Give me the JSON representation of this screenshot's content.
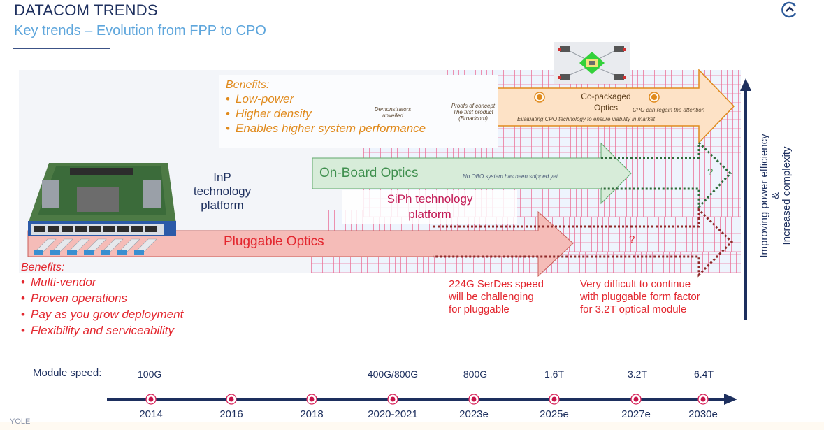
{
  "header": {
    "title": "DATACOM TRENDS",
    "subtitle": "Key trends – Evolution from FPP to CPO",
    "corner_icon": "chevron-up-circle-icon"
  },
  "cpo": {
    "benefits_heading": "Benefits:",
    "benefits": [
      "Low-power",
      "Higher density",
      "Enables higher system performance"
    ],
    "arrow_label_line1": "Co-packaged",
    "arrow_label_line2": "Optics",
    "milestones": [
      {
        "text": [
          "Demonstrators",
          "unveiled"
        ]
      },
      {
        "text": [
          "Proofs of concept",
          "The first product",
          "(Broadcom)"
        ]
      },
      {
        "text": [
          "Evaluating CPO technology to ensure viability in market"
        ]
      },
      {
        "text": [
          "CPO can regain the attention"
        ]
      }
    ],
    "image": "co-packaged-optics-chip-image",
    "color": "#e08a1c"
  },
  "obo": {
    "label": "On-Board Optics",
    "note": "No OBO system has been shipped yet",
    "future": "?",
    "color": "#3f8f4e"
  },
  "pluggable": {
    "label": "Pluggable Optics",
    "future": "?",
    "benefits_heading": "Benefits:",
    "benefits": [
      "Multi-vendor",
      "Proven operations",
      "Pay as you grow deployment",
      "Flexibility and serviceability"
    ],
    "notes": [
      [
        "224G SerDes speed",
        "will be challenging",
        "for pluggable"
      ],
      [
        "Very difficult to continue",
        "with pluggable form factor",
        "for 3.2T optical module"
      ]
    ],
    "image": "switch-with-pluggable-modules-image",
    "color": "#e3262e"
  },
  "platforms": {
    "inp": [
      "InP",
      "technology",
      "platform"
    ],
    "siph": [
      "SiPh technology",
      "platform"
    ]
  },
  "vertical_axis": {
    "line1": "Improving power efficiency",
    "line2": "&",
    "line3": "Increased complexity"
  },
  "timeline": {
    "speed_label": "Module speed:",
    "points": [
      {
        "year": "2014",
        "speed": "100G"
      },
      {
        "year": "2016",
        "speed": ""
      },
      {
        "year": "2018",
        "speed": ""
      },
      {
        "year": "2020-2021",
        "speed": "400G/800G"
      },
      {
        "year": "2023e",
        "speed": "800G"
      },
      {
        "year": "2025e",
        "speed": "1.6T"
      },
      {
        "year": "2027e",
        "speed": "3.2T"
      },
      {
        "year": "2030e",
        "speed": "6.4T"
      }
    ]
  },
  "footer": {
    "logo_text": "YOLE"
  }
}
